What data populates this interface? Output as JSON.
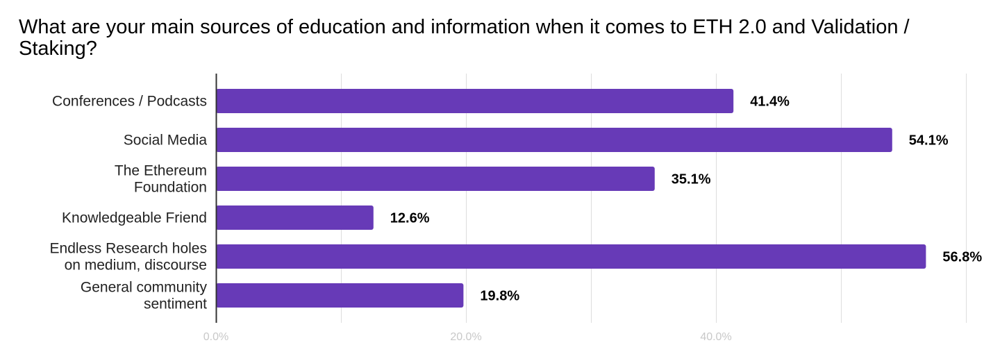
{
  "chart_data": {
    "type": "bar",
    "orientation": "horizontal",
    "title": "What are your main sources of education and information when it comes to ETH 2.0 and Validation / Staking?",
    "categories": [
      [
        "Conferences / Podcasts"
      ],
      [
        "Social Media"
      ],
      [
        "The Ethereum",
        "Foundation"
      ],
      [
        "Knowledgeable Friend"
      ],
      [
        "Endless Research holes",
        "on medium, discourse"
      ],
      [
        "General community",
        "sentiment"
      ]
    ],
    "values": [
      41.4,
      54.1,
      35.1,
      12.6,
      56.8,
      19.8
    ],
    "value_labels": [
      "41.4%",
      "54.1%",
      "35.1%",
      "12.6%",
      "56.8%",
      "19.8%"
    ],
    "xlim": [
      0,
      60
    ],
    "x_gridlines": [
      0,
      10,
      20,
      30,
      40,
      50,
      60
    ],
    "x_tick_labels": [
      {
        "value": 0,
        "text": "0.0%"
      },
      {
        "value": 20,
        "text": "20.0%"
      },
      {
        "value": 40,
        "text": "40.0%"
      }
    ],
    "grid": true,
    "legend": "none",
    "bar_color": "#673ab7",
    "grid_color": "#dddddd",
    "axis_color": "#333333"
  }
}
